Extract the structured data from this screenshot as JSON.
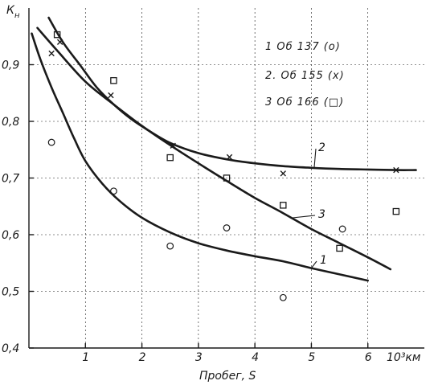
{
  "chart_data": {
    "type": "scatter",
    "ylabel": "К",
    "ylabel_sub": "н",
    "xlabel": "Пробег, S",
    "x_unit_label": "10³км",
    "xlim": [
      0,
      7
    ],
    "ylim": [
      0.4,
      1.0
    ],
    "x_ticks": [
      1,
      2,
      3,
      4,
      5,
      6
    ],
    "y_ticks": [
      0.4,
      0.5,
      0.6,
      0.7,
      0.8,
      0.9
    ],
    "x_tick_labels": [
      "1",
      "2",
      "3",
      "4",
      "5",
      "6"
    ],
    "y_tick_labels": [
      "0,4",
      "0,5",
      "0,6",
      "0,7",
      "0,8",
      "0,9"
    ],
    "grid": true,
    "legend": {
      "placement": "top-right",
      "entries": [
        "1  Об 137 (о)",
        "2. Об 155 (х)",
        "3  Об 166 (□)"
      ]
    },
    "curves": [
      {
        "label": "1",
        "x": [
          0.05,
          0.2,
          0.4,
          0.6,
          0.8,
          1.0,
          1.3,
          1.6,
          2.0,
          2.5,
          3.0,
          3.5,
          4.0,
          4.5,
          5.0,
          5.5,
          6.0
        ],
        "y": [
          0.955,
          0.91,
          0.86,
          0.815,
          0.77,
          0.73,
          0.69,
          0.66,
          0.63,
          0.604,
          0.585,
          0.572,
          0.562,
          0.553,
          0.541,
          0.53,
          0.519
        ]
      },
      {
        "label": "2",
        "x": [
          0.35,
          0.6,
          0.9,
          1.2,
          1.5,
          1.8,
          2.1,
          2.5,
          3.0,
          3.5,
          4.0,
          4.5,
          5.0,
          5.5,
          6.0,
          6.5,
          6.85
        ],
        "y": [
          0.983,
          0.94,
          0.9,
          0.86,
          0.83,
          0.805,
          0.785,
          0.762,
          0.744,
          0.733,
          0.726,
          0.721,
          0.718,
          0.716,
          0.715,
          0.714,
          0.714
        ]
      },
      {
        "label": "3",
        "x": [
          0.15,
          0.5,
          1.0,
          1.5,
          2.0,
          2.5,
          3.0,
          3.5,
          4.0,
          4.5,
          5.0,
          5.5,
          6.0,
          6.4
        ],
        "y": [
          0.965,
          0.925,
          0.87,
          0.83,
          0.792,
          0.758,
          0.726,
          0.695,
          0.665,
          0.638,
          0.61,
          0.585,
          0.56,
          0.539
        ]
      }
    ],
    "series": [
      {
        "name": "Об 137",
        "marker": "circle",
        "x": [
          0.4,
          1.5,
          2.5,
          3.5,
          4.5,
          5.55
        ],
        "y": [
          0.763,
          0.677,
          0.58,
          0.612,
          0.489,
          0.61
        ]
      },
      {
        "name": "Об 155",
        "marker": "cross",
        "x": [
          0.4,
          0.55,
          1.45,
          2.55,
          3.55,
          4.5,
          6.5
        ],
        "y": [
          0.92,
          0.94,
          0.846,
          0.757,
          0.737,
          0.708,
          0.714
        ]
      },
      {
        "name": "Об 166",
        "marker": "square",
        "x": [
          0.5,
          1.5,
          2.5,
          3.5,
          4.5,
          5.5,
          6.5
        ],
        "y": [
          0.953,
          0.872,
          0.736,
          0.7,
          0.652,
          0.576,
          0.641
        ]
      }
    ]
  }
}
